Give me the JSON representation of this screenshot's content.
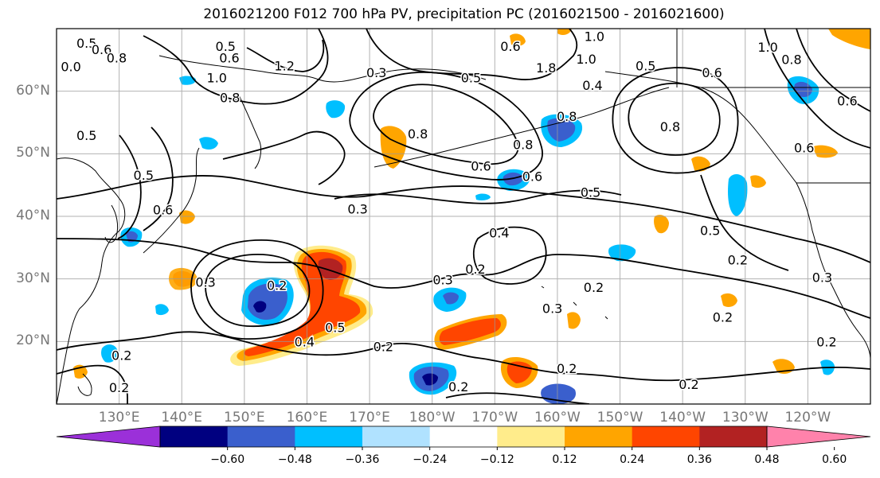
{
  "title": "2016021200 F012 700 hPa PV, precipitation PC (2016021500 - 2016021600)",
  "lat_labels": [
    {
      "label": "60°N",
      "lat": 60
    },
    {
      "label": "50°N",
      "lat": 50
    },
    {
      "label": "40°N",
      "lat": 40
    },
    {
      "label": "30°N",
      "lat": 30
    },
    {
      "label": "20°N",
      "lat": 20
    }
  ],
  "lon_labels": [
    {
      "label": "130°E",
      "lon": 130
    },
    {
      "label": "140°E",
      "lon": 140
    },
    {
      "label": "150°E",
      "lon": 150
    },
    {
      "label": "160°E",
      "lon": 160
    },
    {
      "label": "170°E",
      "lon": 170
    },
    {
      "label": "180°W",
      "lon": 180
    },
    {
      "label": "170°W",
      "lon": 190
    },
    {
      "label": "160°W",
      "lon": 200
    },
    {
      "label": "150°W",
      "lon": 210
    },
    {
      "label": "140°W",
      "lon": 220
    },
    {
      "label": "130°W",
      "lon": 230
    },
    {
      "label": "120°W",
      "lon": 240
    }
  ],
  "extent": {
    "lon_min": 120,
    "lon_max": 250,
    "lat_min": 10,
    "lat_max": 70
  },
  "colorbar": {
    "ticks": [
      "−0.60",
      "−0.48",
      "−0.36",
      "−0.24",
      "−0.12",
      "0.12",
      "0.24",
      "0.36",
      "0.48",
      "0.60"
    ],
    "colors": [
      "#9b30d9",
      "#000080",
      "#3a5fcd",
      "#00bfff",
      "#b0e2ff",
      "#ffffff",
      "#ffec8b",
      "#ffa500",
      "#ff4500",
      "#b22222",
      "#ff82ab"
    ]
  },
  "contour_labels": [
    {
      "text": "0.5",
      "lon": 124.8,
      "lat": 67.5
    },
    {
      "text": "0.6",
      "lon": 127.2,
      "lat": 66.5
    },
    {
      "text": "0.8",
      "lon": 129.6,
      "lat": 65.2
    },
    {
      "text": "0.0",
      "lon": 122.3,
      "lat": 63.8
    },
    {
      "text": "0.5",
      "lon": 147.0,
      "lat": 67.0
    },
    {
      "text": "0.6",
      "lon": 147.6,
      "lat": 65.2
    },
    {
      "text": "1.2",
      "lon": 156.4,
      "lat": 63.9
    },
    {
      "text": "1.0",
      "lon": 145.6,
      "lat": 62.0
    },
    {
      "text": "0.8",
      "lon": 147.7,
      "lat": 58.8
    },
    {
      "text": "0.3",
      "lon": 171.1,
      "lat": 62.8
    },
    {
      "text": "0.5",
      "lon": 186.2,
      "lat": 62.0
    },
    {
      "text": "0.8",
      "lon": 177.7,
      "lat": 53.0
    },
    {
      "text": "0.8",
      "lon": 194.5,
      "lat": 51.3
    },
    {
      "text": "0.6",
      "lon": 187.8,
      "lat": 47.9
    },
    {
      "text": "0.5",
      "lon": 205.3,
      "lat": 43.7
    },
    {
      "text": "0.4",
      "lon": 190.7,
      "lat": 37.2
    },
    {
      "text": "0.3",
      "lon": 181.7,
      "lat": 29.7
    },
    {
      "text": "0.2",
      "lon": 186.9,
      "lat": 31.4
    },
    {
      "text": "0.2",
      "lon": 205.8,
      "lat": 28.5
    },
    {
      "text": "0.3",
      "lon": 199.2,
      "lat": 25.1
    },
    {
      "text": "0.2",
      "lon": 201.5,
      "lat": 15.5
    },
    {
      "text": "0.2",
      "lon": 184.2,
      "lat": 12.6
    },
    {
      "text": "0.2",
      "lon": 221.0,
      "lat": 13.0
    },
    {
      "text": "0.2",
      "lon": 226.4,
      "lat": 23.7
    },
    {
      "text": "0.2",
      "lon": 243.0,
      "lat": 19.8
    },
    {
      "text": "0.3",
      "lon": 242.3,
      "lat": 30.1
    },
    {
      "text": "0.2",
      "lon": 228.8,
      "lat": 32.9
    },
    {
      "text": "0.5",
      "lon": 224.4,
      "lat": 37.6
    },
    {
      "text": "0.5",
      "lon": 214.1,
      "lat": 63.9
    },
    {
      "text": "0.6",
      "lon": 224.7,
      "lat": 62.8
    },
    {
      "text": "1.0",
      "lon": 233.6,
      "lat": 66.9
    },
    {
      "text": "0.8",
      "lon": 237.4,
      "lat": 64.9
    },
    {
      "text": "0.6",
      "lon": 246.3,
      "lat": 58.3
    },
    {
      "text": "0.6",
      "lon": 239.4,
      "lat": 50.8
    },
    {
      "text": "0.8",
      "lon": 218.0,
      "lat": 54.2
    },
    {
      "text": "0.2",
      "lon": 155.2,
      "lat": 28.8
    },
    {
      "text": "0.3",
      "lon": 143.8,
      "lat": 29.3
    },
    {
      "text": "0.5",
      "lon": 164.5,
      "lat": 22.1
    },
    {
      "text": "0.4",
      "lon": 159.6,
      "lat": 19.8
    },
    {
      "text": "0.2",
      "lon": 172.2,
      "lat": 19.0
    },
    {
      "text": "0.3",
      "lon": 168.1,
      "lat": 41.0
    },
    {
      "text": "0.6",
      "lon": 137.0,
      "lat": 40.9
    },
    {
      "text": "0.5",
      "lon": 133.9,
      "lat": 46.4
    },
    {
      "text": "0.5",
      "lon": 124.8,
      "lat": 52.8
    },
    {
      "text": "0.2",
      "lon": 130.4,
      "lat": 17.6
    },
    {
      "text": "0.2",
      "lon": 130.0,
      "lat": 12.5
    },
    {
      "text": "0.6",
      "lon": 196.0,
      "lat": 46.2
    },
    {
      "text": "1.0",
      "lon": 204.6,
      "lat": 65.0
    },
    {
      "text": "0.6",
      "lon": 192.5,
      "lat": 67.0
    },
    {
      "text": "1.8",
      "lon": 198.2,
      "lat": 63.6
    },
    {
      "text": "0.4",
      "lon": 205.6,
      "lat": 60.8
    },
    {
      "text": "1.0",
      "lon": 205.9,
      "lat": 68.6
    },
    {
      "text": "0.8",
      "lon": 201.5,
      "lat": 55.8
    }
  ]
}
